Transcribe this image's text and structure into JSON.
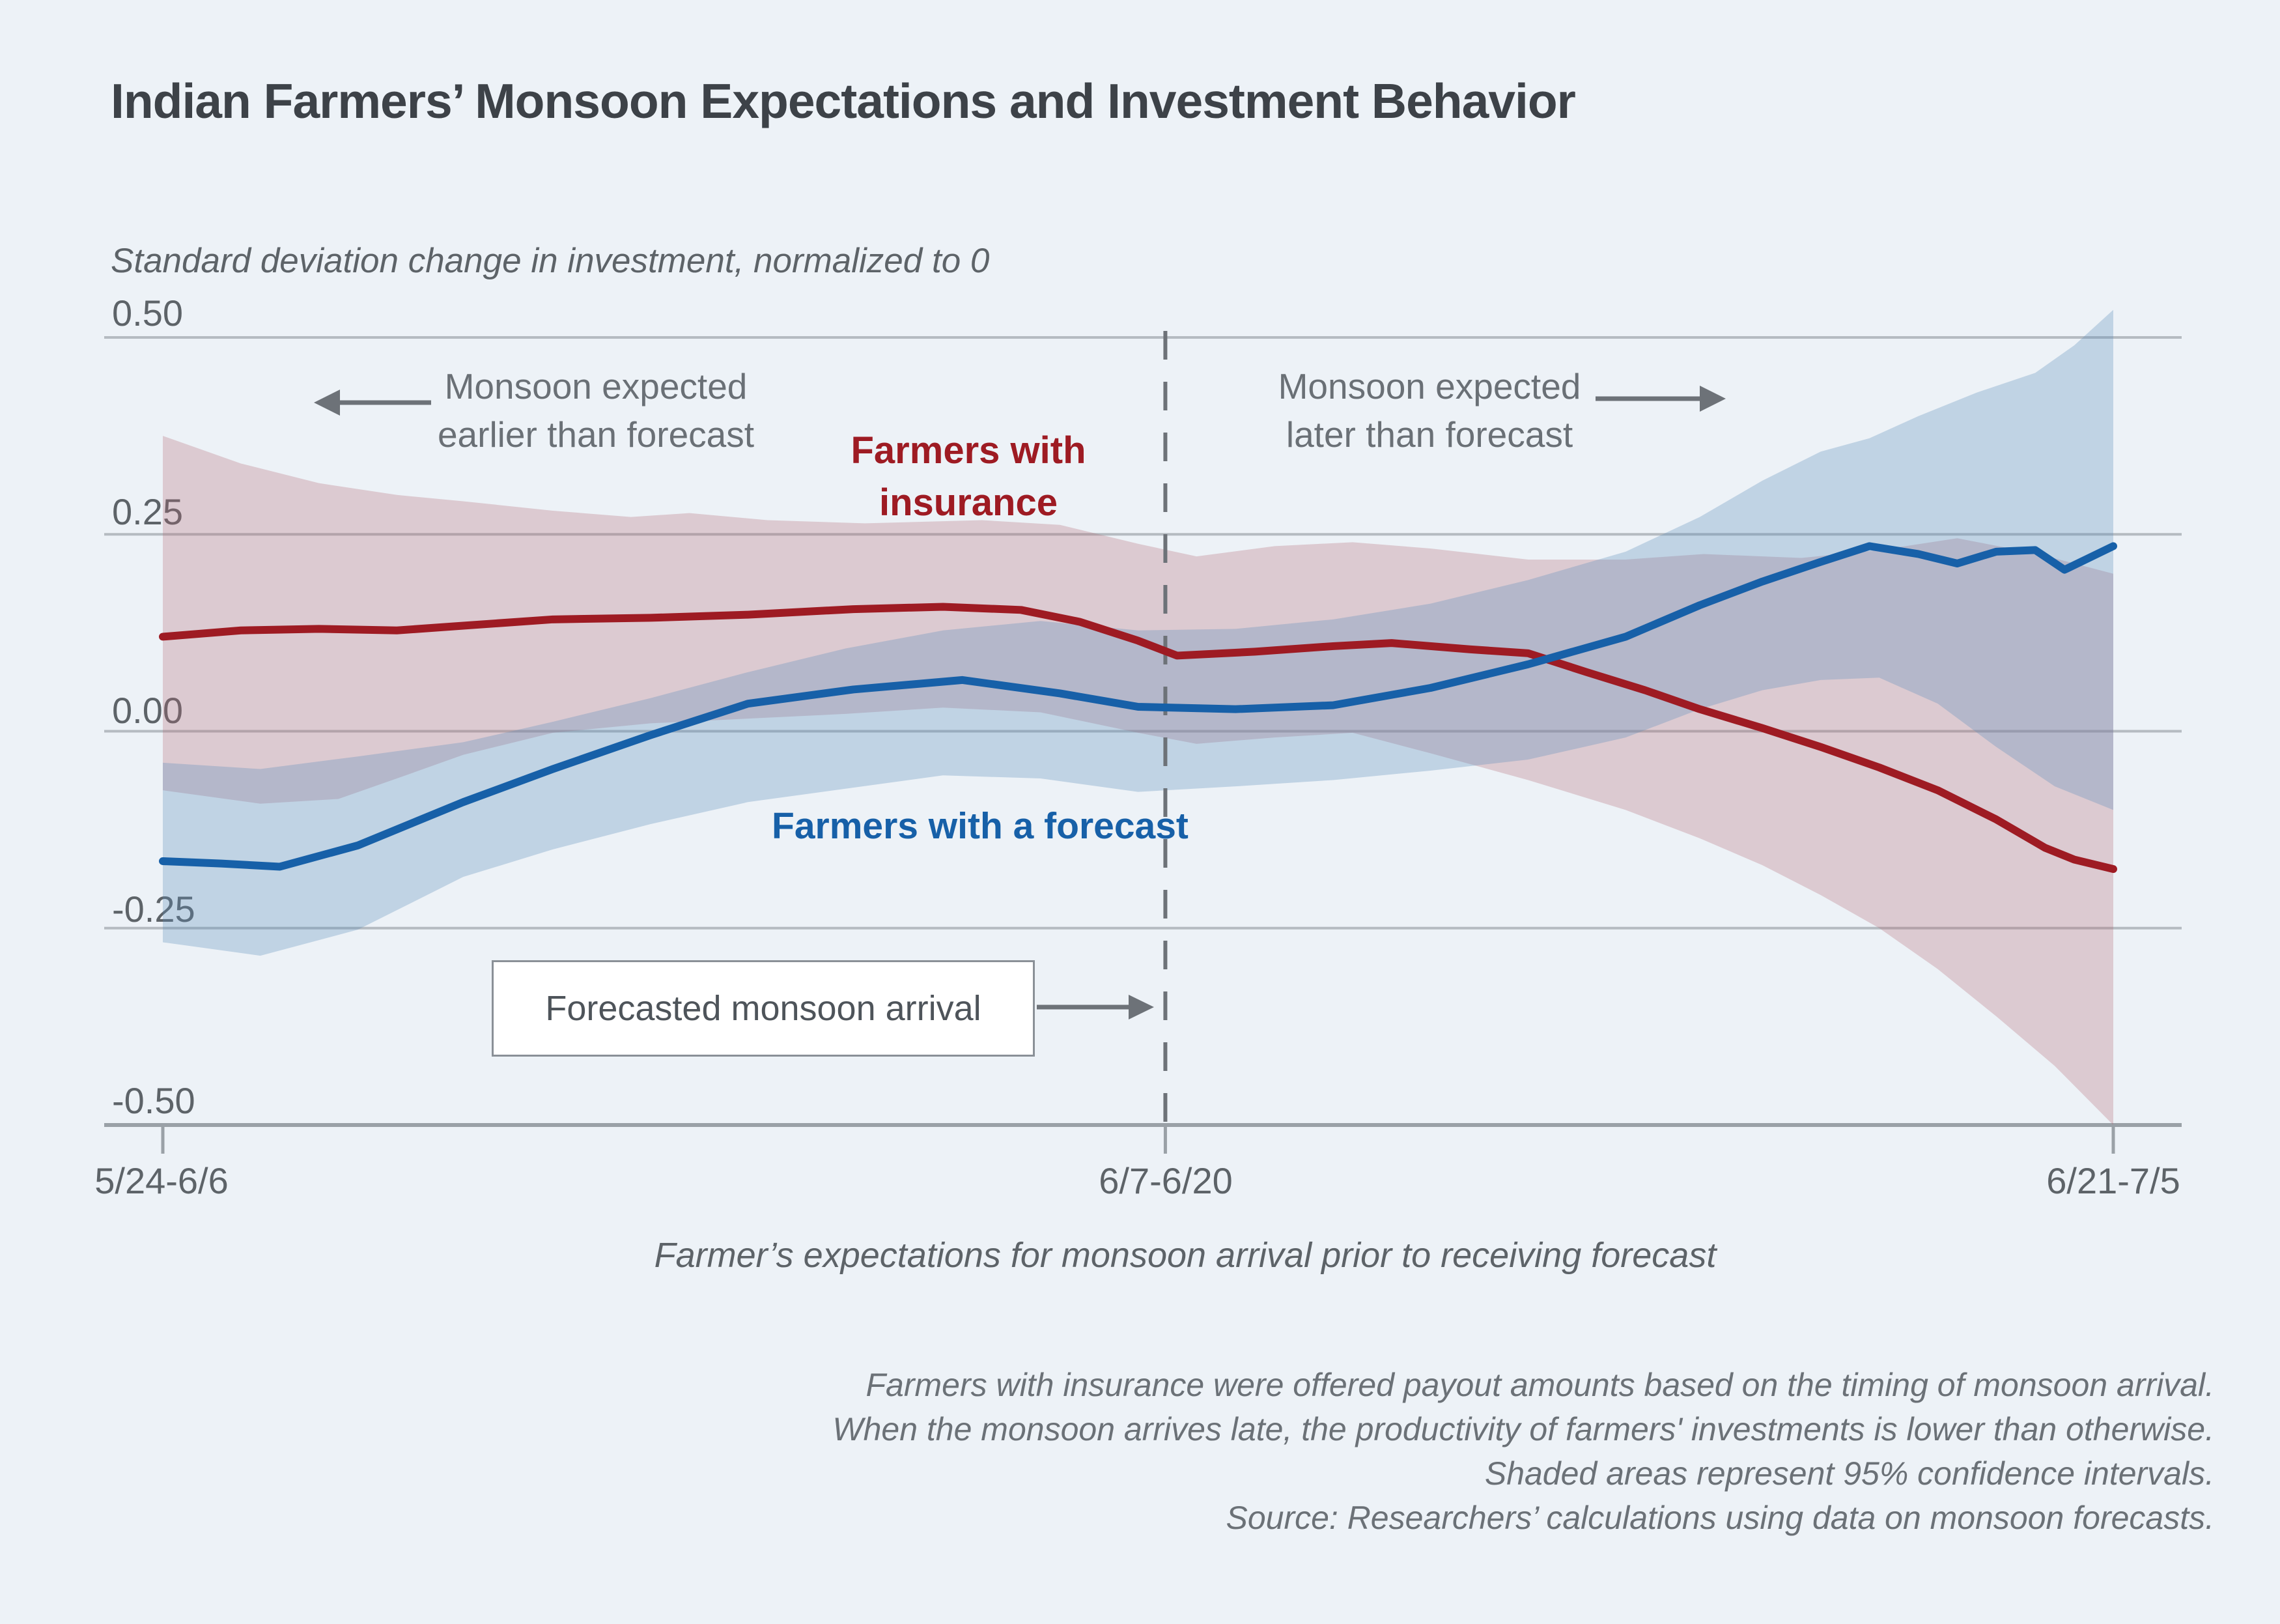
{
  "colors": {
    "background": "#edf2f7",
    "title": "#3d4248",
    "text_grey": "#5d6368",
    "annotation_grey": "#6a7076",
    "red_line": "#9e1b23",
    "blue_line": "#1760a8",
    "red_band": "#b0656e",
    "blue_band": "#5b8cba",
    "gridline": "#b5bbc1",
    "axis_line": "#9aa1a7",
    "dashed_line": "#6d7278",
    "arrow": "#6d7278",
    "box_border": "#8a9097"
  },
  "header": {
    "title": "Indian Farmers’ Monsoon Expectations and Investment Behavior"
  },
  "y_axis": {
    "title": "Standard deviation change in investment, normalized to 0",
    "tick_labels": [
      "0.50",
      "0.25",
      "0.00",
      "-0.25",
      "-0.50"
    ],
    "tick_values": [
      0.5,
      0.25,
      0,
      -0.25,
      -0.5
    ]
  },
  "x_axis": {
    "tick_labels": [
      "5/24-6/6",
      "6/7-6/20",
      "6/21-7/5"
    ],
    "title": "Farmer’s expectations for monsoon arrival prior to receiving forecast"
  },
  "annotations": {
    "left_line1": "Monsoon expected",
    "left_line2": "earlier than forecast",
    "right_line1": "Monsoon expected",
    "right_line2": "later than forecast",
    "red_label_line1": "Farmers with",
    "red_label_line2": "insurance",
    "blue_label": "Farmers with a forecast",
    "box_label": "Forecasted monsoon arrival"
  },
  "notes": [
    "Farmers with insurance were offered payout amounts based on the timing of monsoon arrival.",
    "When the monsoon arrives late, the productivity of farmers' investments is lower than otherwise.",
    "Shaded areas represent 95% confidence intervals.",
    "Source: Researchers’ calculations using data on monsoon forecasts."
  ],
  "chart_data": {
    "type": "line",
    "title": "Indian Farmers’ Monsoon Expectations and Investment Behavior",
    "xlabel": "Farmer’s expectations for monsoon arrival prior to receiving forecast",
    "ylabel": "Standard deviation change in investment, normalized to 0",
    "ylim": [
      -0.5,
      0.5
    ],
    "x_unit": "normalized 0-1 across expectation range (5/24-6/6 to 6/21-7/5)",
    "x_tick_ts": [
      0,
      0.514,
      1
    ],
    "forecast_line_t": 0.514,
    "grid": true,
    "legend_position": "inline-labels",
    "series": [
      {
        "name": "Farmers with insurance",
        "color_key": "red_line",
        "band_color_key": "red_band",
        "band_opacity": 0.28,
        "points": [
          [
            0,
            0.12
          ],
          [
            0.04,
            0.128
          ],
          [
            0.08,
            0.13
          ],
          [
            0.12,
            0.128
          ],
          [
            0.154,
            0.134
          ],
          [
            0.2,
            0.142
          ],
          [
            0.25,
            0.144
          ],
          [
            0.3,
            0.148
          ],
          [
            0.354,
            0.155
          ],
          [
            0.4,
            0.158
          ],
          [
            0.44,
            0.154
          ],
          [
            0.47,
            0.139
          ],
          [
            0.5,
            0.115
          ],
          [
            0.52,
            0.096
          ],
          [
            0.56,
            0.101
          ],
          [
            0.6,
            0.108
          ],
          [
            0.63,
            0.112
          ],
          [
            0.67,
            0.104
          ],
          [
            0.7,
            0.099
          ],
          [
            0.73,
            0.075
          ],
          [
            0.76,
            0.052
          ],
          [
            0.788,
            0.028
          ],
          [
            0.82,
            0.004
          ],
          [
            0.85,
            -0.02
          ],
          [
            0.88,
            -0.046
          ],
          [
            0.91,
            -0.075
          ],
          [
            0.94,
            -0.112
          ],
          [
            0.965,
            -0.148
          ],
          [
            0.98,
            -0.163
          ],
          [
            1,
            -0.175
          ]
        ],
        "ci_upper": [
          [
            0,
            0.375
          ],
          [
            0.04,
            0.34
          ],
          [
            0.08,
            0.315
          ],
          [
            0.12,
            0.3
          ],
          [
            0.154,
            0.292
          ],
          [
            0.2,
            0.28
          ],
          [
            0.24,
            0.272
          ],
          [
            0.27,
            0.277
          ],
          [
            0.31,
            0.268
          ],
          [
            0.36,
            0.264
          ],
          [
            0.42,
            0.268
          ],
          [
            0.46,
            0.262
          ],
          [
            0.5,
            0.238
          ],
          [
            0.53,
            0.222
          ],
          [
            0.57,
            0.235
          ],
          [
            0.61,
            0.24
          ],
          [
            0.65,
            0.232
          ],
          [
            0.7,
            0.218
          ],
          [
            0.75,
            0.218
          ],
          [
            0.79,
            0.225
          ],
          [
            0.84,
            0.22
          ],
          [
            0.88,
            0.23
          ],
          [
            0.92,
            0.245
          ],
          [
            0.96,
            0.226
          ],
          [
            1,
            0.2
          ]
        ],
        "ci_lower": [
          [
            0,
            -0.075
          ],
          [
            0.05,
            -0.092
          ],
          [
            0.09,
            -0.086
          ],
          [
            0.12,
            -0.06
          ],
          [
            0.154,
            -0.03
          ],
          [
            0.2,
            -0.002
          ],
          [
            0.25,
            0.01
          ],
          [
            0.3,
            0.016
          ],
          [
            0.35,
            0.022
          ],
          [
            0.4,
            0.03
          ],
          [
            0.45,
            0.024
          ],
          [
            0.5,
            -0.002
          ],
          [
            0.53,
            -0.016
          ],
          [
            0.57,
            -0.008
          ],
          [
            0.61,
            -0.002
          ],
          [
            0.65,
            -0.028
          ],
          [
            0.7,
            -0.062
          ],
          [
            0.75,
            -0.1
          ],
          [
            0.788,
            -0.136
          ],
          [
            0.82,
            -0.17
          ],
          [
            0.85,
            -0.208
          ],
          [
            0.88,
            -0.25
          ],
          [
            0.91,
            -0.302
          ],
          [
            0.94,
            -0.362
          ],
          [
            0.97,
            -0.425
          ],
          [
            1,
            -0.5
          ]
        ]
      },
      {
        "name": "Farmers with a forecast",
        "color_key": "blue_line",
        "band_color_key": "blue_band",
        "band_opacity": 0.3,
        "points": [
          [
            0,
            -0.165
          ],
          [
            0.03,
            -0.168
          ],
          [
            0.06,
            -0.172
          ],
          [
            0.1,
            -0.145
          ],
          [
            0.154,
            -0.09
          ],
          [
            0.2,
            -0.048
          ],
          [
            0.25,
            -0.005
          ],
          [
            0.3,
            0.035
          ],
          [
            0.354,
            0.053
          ],
          [
            0.41,
            0.065
          ],
          [
            0.46,
            0.048
          ],
          [
            0.5,
            0.031
          ],
          [
            0.55,
            0.028
          ],
          [
            0.6,
            0.033
          ],
          [
            0.65,
            0.055
          ],
          [
            0.7,
            0.085
          ],
          [
            0.75,
            0.12
          ],
          [
            0.788,
            0.16
          ],
          [
            0.82,
            0.19
          ],
          [
            0.85,
            0.215
          ],
          [
            0.875,
            0.235
          ],
          [
            0.9,
            0.225
          ],
          [
            0.92,
            0.213
          ],
          [
            0.94,
            0.228
          ],
          [
            0.96,
            0.23
          ],
          [
            0.975,
            0.205
          ],
          [
            1,
            0.235
          ]
        ],
        "ci_upper": [
          [
            0,
            -0.04
          ],
          [
            0.05,
            -0.048
          ],
          [
            0.1,
            -0.032
          ],
          [
            0.154,
            -0.014
          ],
          [
            0.2,
            0.012
          ],
          [
            0.25,
            0.042
          ],
          [
            0.3,
            0.075
          ],
          [
            0.35,
            0.105
          ],
          [
            0.4,
            0.128
          ],
          [
            0.45,
            0.14
          ],
          [
            0.5,
            0.128
          ],
          [
            0.55,
            0.13
          ],
          [
            0.6,
            0.142
          ],
          [
            0.65,
            0.162
          ],
          [
            0.7,
            0.192
          ],
          [
            0.75,
            0.228
          ],
          [
            0.788,
            0.272
          ],
          [
            0.82,
            0.318
          ],
          [
            0.85,
            0.355
          ],
          [
            0.875,
            0.372
          ],
          [
            0.9,
            0.4
          ],
          [
            0.93,
            0.43
          ],
          [
            0.96,
            0.455
          ],
          [
            0.98,
            0.49
          ],
          [
            1,
            0.535
          ]
        ],
        "ci_lower": [
          [
            0,
            -0.268
          ],
          [
            0.05,
            -0.285
          ],
          [
            0.1,
            -0.252
          ],
          [
            0.154,
            -0.185
          ],
          [
            0.2,
            -0.15
          ],
          [
            0.25,
            -0.118
          ],
          [
            0.3,
            -0.09
          ],
          [
            0.35,
            -0.073
          ],
          [
            0.4,
            -0.056
          ],
          [
            0.45,
            -0.06
          ],
          [
            0.5,
            -0.077
          ],
          [
            0.55,
            -0.07
          ],
          [
            0.6,
            -0.062
          ],
          [
            0.65,
            -0.05
          ],
          [
            0.7,
            -0.036
          ],
          [
            0.75,
            -0.008
          ],
          [
            0.788,
            0.028
          ],
          [
            0.82,
            0.052
          ],
          [
            0.85,
            0.065
          ],
          [
            0.88,
            0.068
          ],
          [
            0.91,
            0.035
          ],
          [
            0.94,
            -0.02
          ],
          [
            0.97,
            -0.07
          ],
          [
            1,
            -0.1
          ]
        ]
      }
    ]
  }
}
